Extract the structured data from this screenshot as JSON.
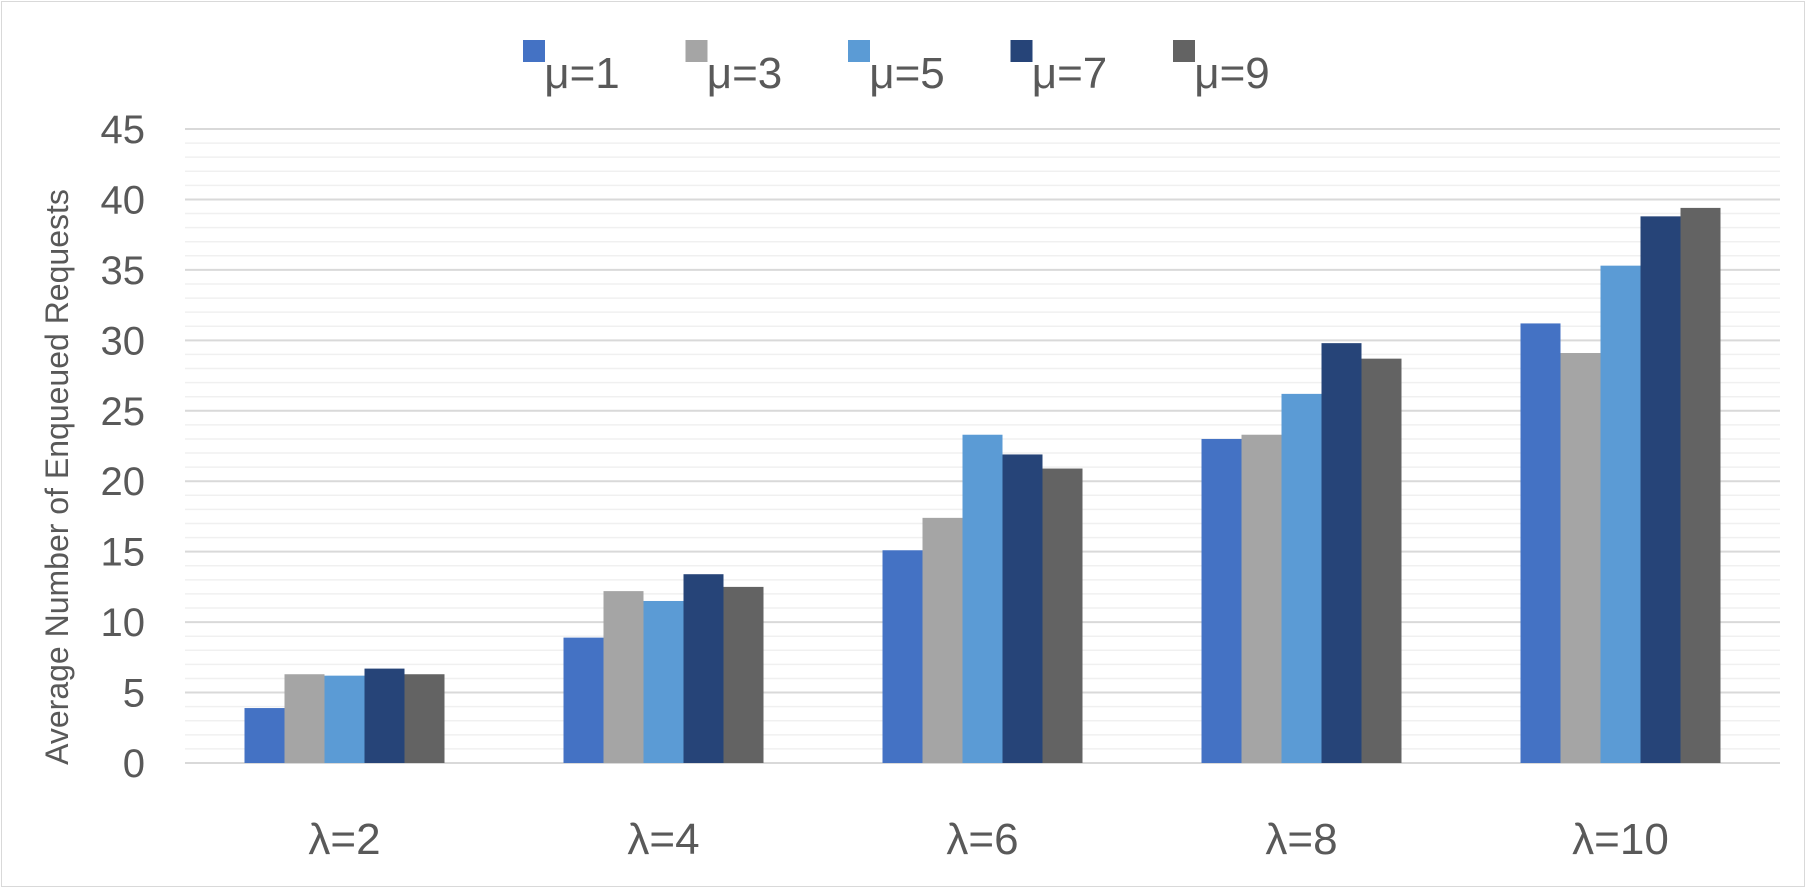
{
  "chart_data": {
    "type": "bar",
    "title": "",
    "xlabel": "",
    "ylabel": "Average Number of Enqueued Requests",
    "ylim": [
      0,
      45
    ],
    "ytick_step": 5,
    "minor_step": 1,
    "grid": true,
    "legend_position": "top",
    "categories": [
      "λ=2",
      "λ=4",
      "λ=6",
      "λ=8",
      "λ=10"
    ],
    "series": [
      {
        "name": "μ=1",
        "color": "#4472C4",
        "values": [
          3.9,
          8.9,
          15.1,
          23.0,
          31.2
        ]
      },
      {
        "name": "μ=3",
        "color": "#A5A5A5",
        "values": [
          6.3,
          12.2,
          17.4,
          23.3,
          29.1
        ]
      },
      {
        "name": "μ=5",
        "color": "#5B9BD5",
        "values": [
          6.2,
          11.5,
          23.3,
          26.2,
          35.3
        ]
      },
      {
        "name": "μ=7",
        "color": "#264478",
        "values": [
          6.7,
          13.4,
          21.9,
          29.8,
          38.8
        ]
      },
      {
        "name": "μ=9",
        "color": "#636363",
        "values": [
          6.3,
          12.5,
          20.9,
          28.7,
          39.4
        ]
      }
    ]
  }
}
